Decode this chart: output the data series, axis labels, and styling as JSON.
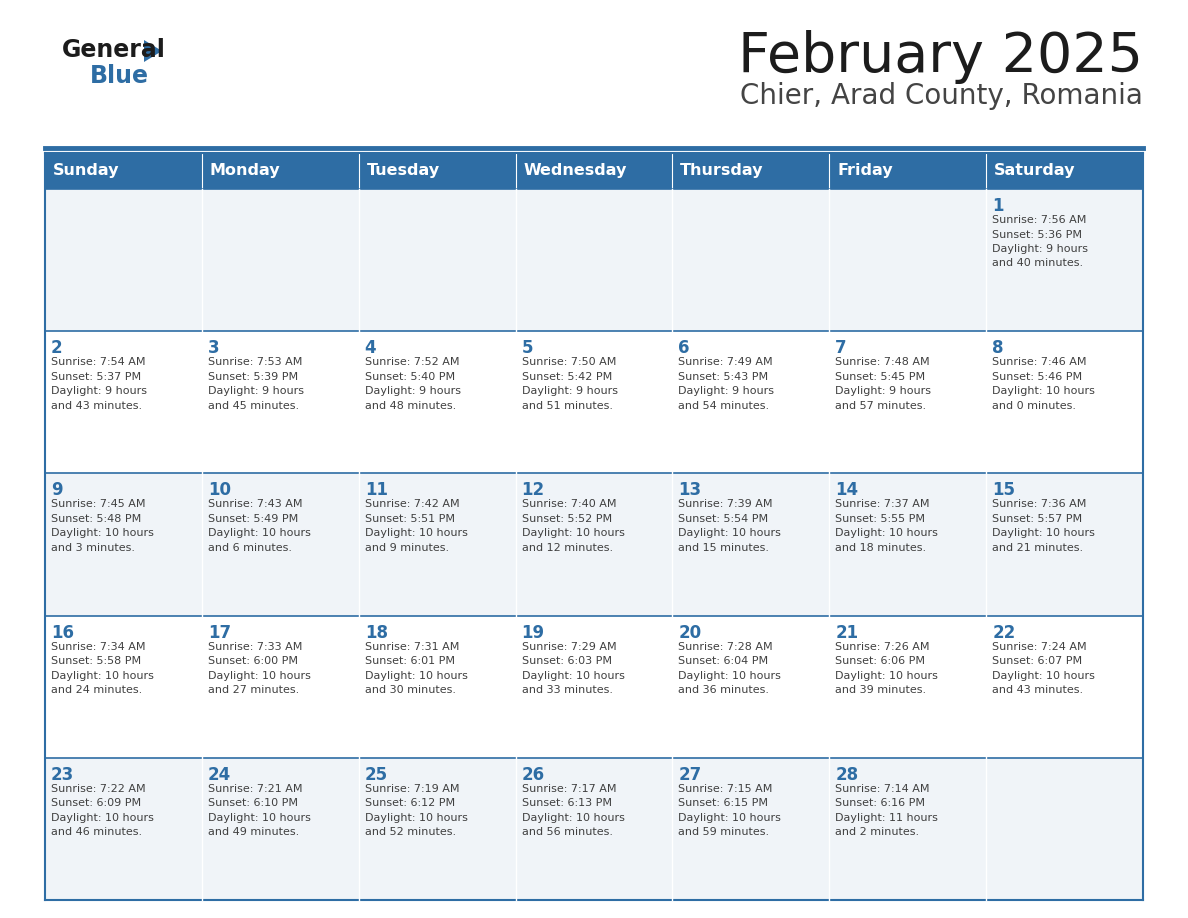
{
  "title": "February 2025",
  "subtitle": "Chier, Arad County, Romania",
  "header_color": "#2E6DA4",
  "header_text_color": "#FFFFFF",
  "cell_bg_light": "#F0F4F8",
  "cell_bg_white": "#FFFFFF",
  "day_number_color": "#2E6DA4",
  "info_text_color": "#404040",
  "line_color": "#2E6DA4",
  "days_of_week": [
    "Sunday",
    "Monday",
    "Tuesday",
    "Wednesday",
    "Thursday",
    "Friday",
    "Saturday"
  ],
  "weeks": [
    [
      {
        "day": "",
        "info": ""
      },
      {
        "day": "",
        "info": ""
      },
      {
        "day": "",
        "info": ""
      },
      {
        "day": "",
        "info": ""
      },
      {
        "day": "",
        "info": ""
      },
      {
        "day": "",
        "info": ""
      },
      {
        "day": "1",
        "info": "Sunrise: 7:56 AM\nSunset: 5:36 PM\nDaylight: 9 hours\nand 40 minutes."
      }
    ],
    [
      {
        "day": "2",
        "info": "Sunrise: 7:54 AM\nSunset: 5:37 PM\nDaylight: 9 hours\nand 43 minutes."
      },
      {
        "day": "3",
        "info": "Sunrise: 7:53 AM\nSunset: 5:39 PM\nDaylight: 9 hours\nand 45 minutes."
      },
      {
        "day": "4",
        "info": "Sunrise: 7:52 AM\nSunset: 5:40 PM\nDaylight: 9 hours\nand 48 minutes."
      },
      {
        "day": "5",
        "info": "Sunrise: 7:50 AM\nSunset: 5:42 PM\nDaylight: 9 hours\nand 51 minutes."
      },
      {
        "day": "6",
        "info": "Sunrise: 7:49 AM\nSunset: 5:43 PM\nDaylight: 9 hours\nand 54 minutes."
      },
      {
        "day": "7",
        "info": "Sunrise: 7:48 AM\nSunset: 5:45 PM\nDaylight: 9 hours\nand 57 minutes."
      },
      {
        "day": "8",
        "info": "Sunrise: 7:46 AM\nSunset: 5:46 PM\nDaylight: 10 hours\nand 0 minutes."
      }
    ],
    [
      {
        "day": "9",
        "info": "Sunrise: 7:45 AM\nSunset: 5:48 PM\nDaylight: 10 hours\nand 3 minutes."
      },
      {
        "day": "10",
        "info": "Sunrise: 7:43 AM\nSunset: 5:49 PM\nDaylight: 10 hours\nand 6 minutes."
      },
      {
        "day": "11",
        "info": "Sunrise: 7:42 AM\nSunset: 5:51 PM\nDaylight: 10 hours\nand 9 minutes."
      },
      {
        "day": "12",
        "info": "Sunrise: 7:40 AM\nSunset: 5:52 PM\nDaylight: 10 hours\nand 12 minutes."
      },
      {
        "day": "13",
        "info": "Sunrise: 7:39 AM\nSunset: 5:54 PM\nDaylight: 10 hours\nand 15 minutes."
      },
      {
        "day": "14",
        "info": "Sunrise: 7:37 AM\nSunset: 5:55 PM\nDaylight: 10 hours\nand 18 minutes."
      },
      {
        "day": "15",
        "info": "Sunrise: 7:36 AM\nSunset: 5:57 PM\nDaylight: 10 hours\nand 21 minutes."
      }
    ],
    [
      {
        "day": "16",
        "info": "Sunrise: 7:34 AM\nSunset: 5:58 PM\nDaylight: 10 hours\nand 24 minutes."
      },
      {
        "day": "17",
        "info": "Sunrise: 7:33 AM\nSunset: 6:00 PM\nDaylight: 10 hours\nand 27 minutes."
      },
      {
        "day": "18",
        "info": "Sunrise: 7:31 AM\nSunset: 6:01 PM\nDaylight: 10 hours\nand 30 minutes."
      },
      {
        "day": "19",
        "info": "Sunrise: 7:29 AM\nSunset: 6:03 PM\nDaylight: 10 hours\nand 33 minutes."
      },
      {
        "day": "20",
        "info": "Sunrise: 7:28 AM\nSunset: 6:04 PM\nDaylight: 10 hours\nand 36 minutes."
      },
      {
        "day": "21",
        "info": "Sunrise: 7:26 AM\nSunset: 6:06 PM\nDaylight: 10 hours\nand 39 minutes."
      },
      {
        "day": "22",
        "info": "Sunrise: 7:24 AM\nSunset: 6:07 PM\nDaylight: 10 hours\nand 43 minutes."
      }
    ],
    [
      {
        "day": "23",
        "info": "Sunrise: 7:22 AM\nSunset: 6:09 PM\nDaylight: 10 hours\nand 46 minutes."
      },
      {
        "day": "24",
        "info": "Sunrise: 7:21 AM\nSunset: 6:10 PM\nDaylight: 10 hours\nand 49 minutes."
      },
      {
        "day": "25",
        "info": "Sunrise: 7:19 AM\nSunset: 6:12 PM\nDaylight: 10 hours\nand 52 minutes."
      },
      {
        "day": "26",
        "info": "Sunrise: 7:17 AM\nSunset: 6:13 PM\nDaylight: 10 hours\nand 56 minutes."
      },
      {
        "day": "27",
        "info": "Sunrise: 7:15 AM\nSunset: 6:15 PM\nDaylight: 10 hours\nand 59 minutes."
      },
      {
        "day": "28",
        "info": "Sunrise: 7:14 AM\nSunset: 6:16 PM\nDaylight: 11 hours\nand 2 minutes."
      },
      {
        "day": "",
        "info": ""
      }
    ]
  ]
}
